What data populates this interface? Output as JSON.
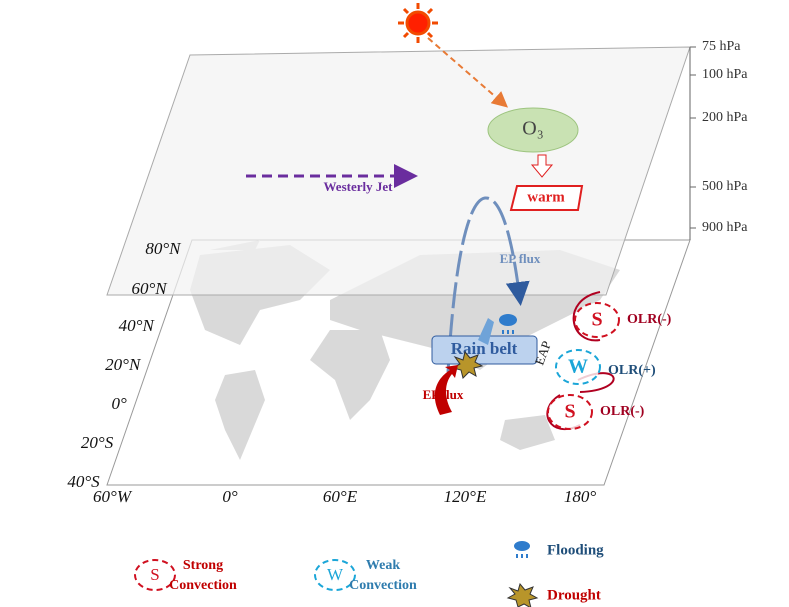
{
  "levels": [
    "75 hPa",
    "100 hPa",
    "200 hPa",
    "500 hPa",
    "900 hPa"
  ],
  "ozone": "O₃",
  "westerly_jet": "Westerly Jet",
  "warm": "warm",
  "ep_flux_upper": "EP flux",
  "ep_flux_lower": "EP flux",
  "rain_belt": "Rain  belt",
  "eap": "EAP",
  "cells": [
    {
      "letter": "S",
      "label": "OLR(-)"
    },
    {
      "letter": "W",
      "label": "OLR(+)"
    },
    {
      "letter": "S",
      "label": "OLR(-)"
    }
  ],
  "latitudes": [
    "80°N",
    "60°N",
    "40°N",
    "20°N",
    "0°",
    "20°S",
    "40°S"
  ],
  "longitudes": [
    "60°W",
    "0°",
    "60°E",
    "120°E",
    "180°"
  ],
  "legend": [
    {
      "symbol": "S",
      "label": "Strong\nConvection"
    },
    {
      "symbol": "W",
      "label": "Weak\nConvection"
    },
    {
      "label": "Flooding"
    },
    {
      "label": "Drought"
    }
  ]
}
